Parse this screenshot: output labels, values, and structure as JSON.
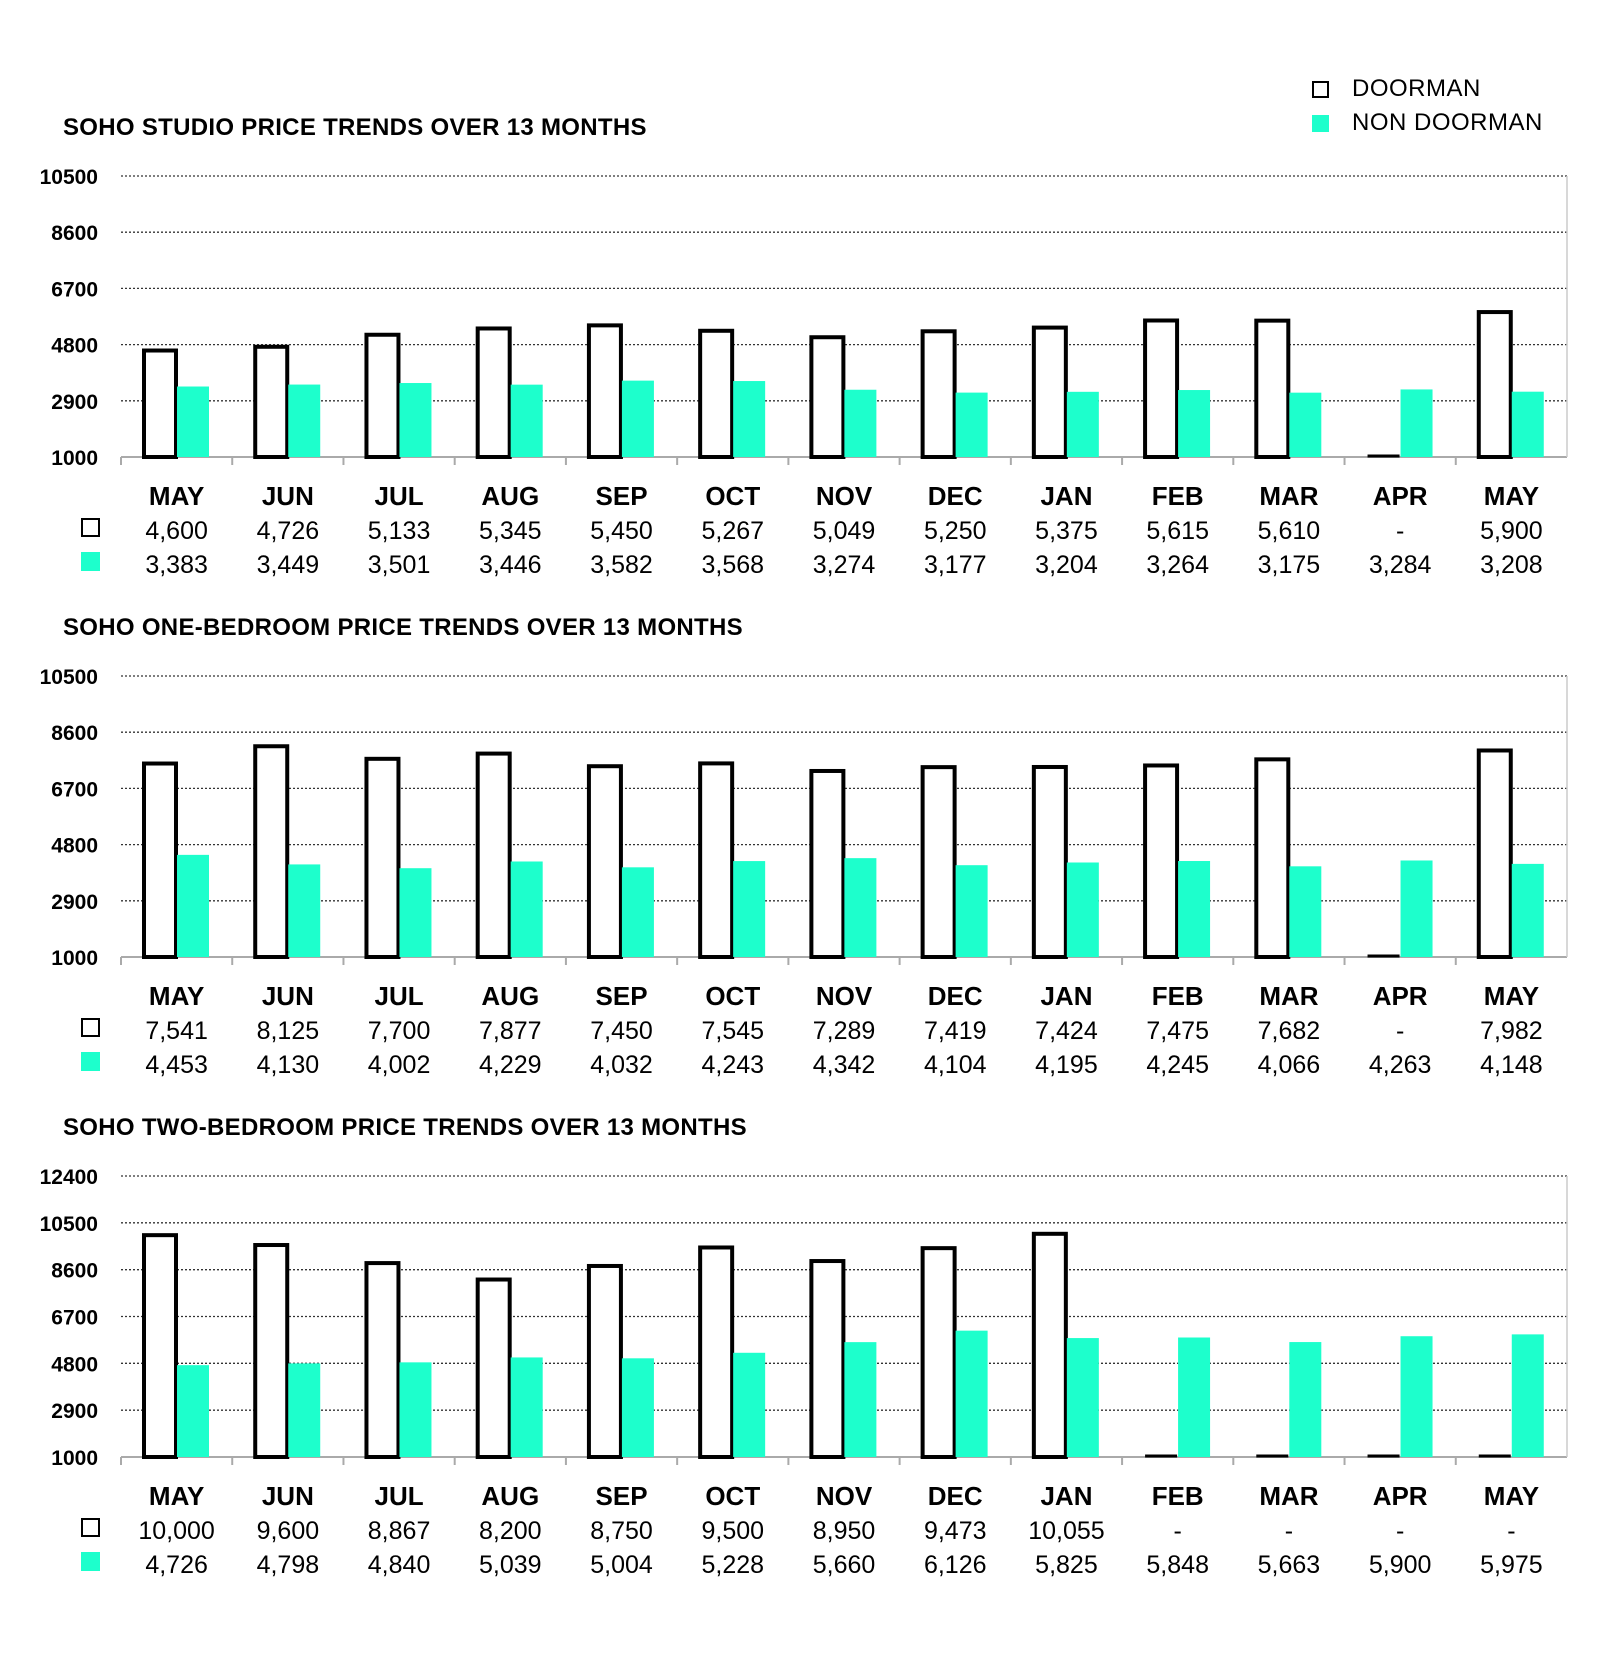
{
  "legend": {
    "doorman_label": "DOORMAN",
    "non_doorman_label": "NON DOORMAN"
  },
  "colors": {
    "doorman_fill": "#ffffff",
    "doorman_stroke": "#000000",
    "non_doorman": "#1dffcc"
  },
  "chart_data": [
    {
      "type": "bar",
      "title": "SOHO STUDIO PRICE TRENDS OVER 13 MONTHS",
      "categories": [
        "MAY",
        "JUN",
        "JUL",
        "AUG",
        "SEP",
        "OCT",
        "NOV",
        "DEC",
        "JAN",
        "FEB",
        "MAR",
        "APR",
        "MAY"
      ],
      "yticks": [
        "10500",
        "8600",
        "6700",
        "4800",
        "2900",
        "1000"
      ],
      "ylim": [
        1000,
        10500
      ],
      "series": [
        {
          "name": "DOORMAN",
          "values": [
            4600,
            4726,
            5133,
            5345,
            5450,
            5267,
            5049,
            5250,
            5375,
            5615,
            5610,
            null,
            5900
          ],
          "labels": [
            "4,600",
            "4,726",
            "5,133",
            "5,345",
            "5,450",
            "5,267",
            "5,049",
            "5,250",
            "5,375",
            "5,615",
            "5,610",
            "-",
            "5,900"
          ]
        },
        {
          "name": "NON DOORMAN",
          "values": [
            3383,
            3449,
            3501,
            3446,
            3582,
            3568,
            3274,
            3177,
            3204,
            3264,
            3175,
            3284,
            3208
          ],
          "labels": [
            "3,383",
            "3,449",
            "3,501",
            "3,446",
            "3,582",
            "3,568",
            "3,274",
            "3,177",
            "3,204",
            "3,264",
            "3,175",
            "3,284",
            "3,208"
          ]
        }
      ]
    },
    {
      "type": "bar",
      "title": "SOHO ONE-BEDROOM PRICE TRENDS OVER 13 MONTHS",
      "categories": [
        "MAY",
        "JUN",
        "JUL",
        "AUG",
        "SEP",
        "OCT",
        "NOV",
        "DEC",
        "JAN",
        "FEB",
        "MAR",
        "APR",
        "MAY"
      ],
      "yticks": [
        "10500",
        "8600",
        "6700",
        "4800",
        "2900",
        "1000"
      ],
      "ylim": [
        1000,
        10500
      ],
      "series": [
        {
          "name": "DOORMAN",
          "values": [
            7541,
            8125,
            7700,
            7877,
            7450,
            7545,
            7289,
            7419,
            7424,
            7475,
            7682,
            null,
            7982
          ],
          "labels": [
            "7,541",
            "8,125",
            "7,700",
            "7,877",
            "7,450",
            "7,545",
            "7,289",
            "7,419",
            "7,424",
            "7,475",
            "7,682",
            "-",
            "7,982"
          ]
        },
        {
          "name": "NON DOORMAN",
          "values": [
            4453,
            4130,
            4002,
            4229,
            4032,
            4243,
            4342,
            4104,
            4195,
            4245,
            4066,
            4263,
            4148
          ],
          "labels": [
            "4,453",
            "4,130",
            "4,002",
            "4,229",
            "4,032",
            "4,243",
            "4,342",
            "4,104",
            "4,195",
            "4,245",
            "4,066",
            "4,263",
            "4,148"
          ]
        }
      ]
    },
    {
      "type": "bar",
      "title": "SOHO TWO-BEDROOM PRICE TRENDS OVER 13 MONTHS",
      "categories": [
        "MAY",
        "JUN",
        "JUL",
        "AUG",
        "SEP",
        "OCT",
        "NOV",
        "DEC",
        "JAN",
        "FEB",
        "MAR",
        "APR",
        "MAY"
      ],
      "yticks": [
        "12400",
        "10500",
        "8600",
        "6700",
        "4800",
        "2900",
        "1000"
      ],
      "ylim": [
        1000,
        12400
      ],
      "series": [
        {
          "name": "DOORMAN",
          "values": [
            10000,
            9600,
            8867,
            8200,
            8750,
            9500,
            8950,
            9473,
            10055,
            null,
            null,
            null,
            null
          ],
          "labels": [
            "10,000",
            "9,600",
            "8,867",
            "8,200",
            "8,750",
            "9,500",
            "8,950",
            "9,473",
            "10,055",
            "-",
            "-",
            "-",
            "-"
          ]
        },
        {
          "name": "NON DOORMAN",
          "values": [
            4726,
            4798,
            4840,
            5039,
            5004,
            5228,
            5660,
            6126,
            5825,
            5848,
            5663,
            5900,
            5975
          ],
          "labels": [
            "4,726",
            "4,798",
            "4,840",
            "5,039",
            "5,004",
            "5,228",
            "5,660",
            "6,126",
            "5,825",
            "5,848",
            "5,663",
            "5,900",
            "5,975"
          ]
        }
      ]
    }
  ]
}
